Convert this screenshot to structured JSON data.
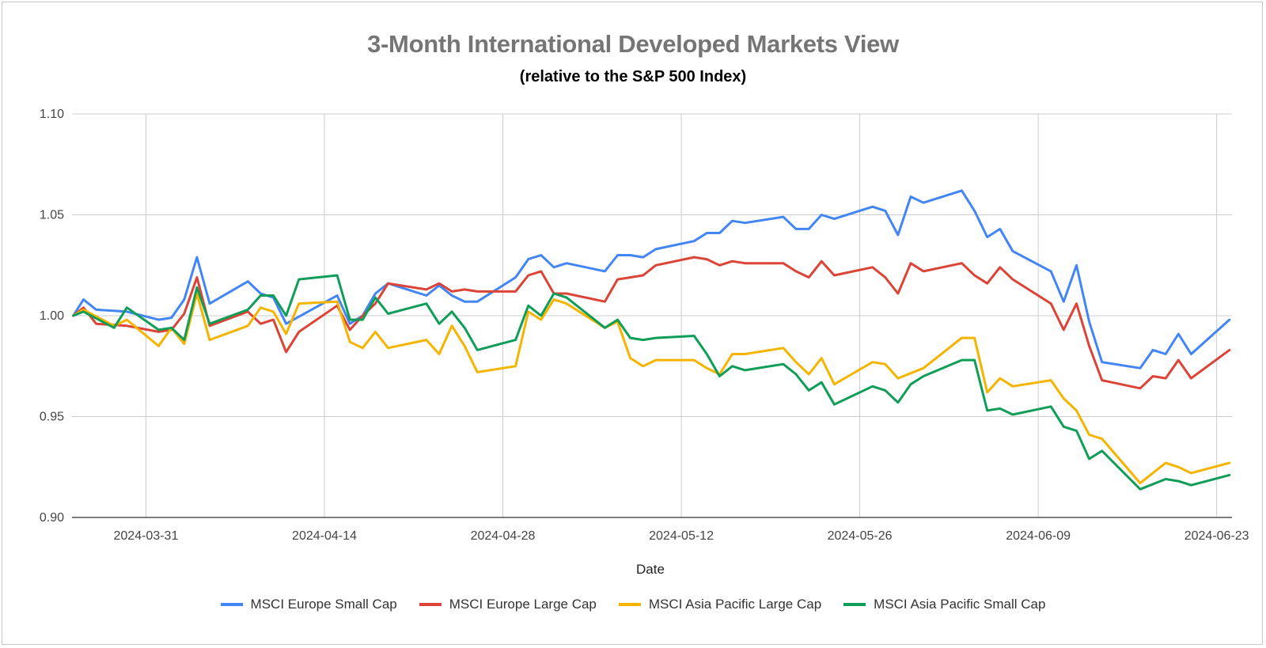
{
  "chart_data": {
    "type": "line",
    "title": "3-Month International Developed Markets View",
    "subtitle": "(relative to the S&P 500 Index)",
    "xlabel": "Date",
    "ylabel": "",
    "ylim": [
      0.9,
      1.1
    ],
    "yticks": [
      "0.90",
      "0.95",
      "1.00",
      "1.05",
      "1.10"
    ],
    "ytick_values": [
      0.9,
      0.95,
      1.0,
      1.05,
      1.1
    ],
    "xlim": [
      -5.8,
      85.2
    ],
    "xticks": [
      "2024-03-31",
      "2024-04-14",
      "2024-04-28",
      "2024-05-12",
      "2024-05-26",
      "2024-06-09",
      "2024-06-23"
    ],
    "xtick_values": [
      0,
      14,
      28,
      42,
      56,
      70,
      84
    ],
    "x_unit": "days since 2024-03-31",
    "grid": true,
    "legend_position": "bottom",
    "series": [
      {
        "name": "MSCI Europe Small Cap",
        "color": "#4285f4",
        "points": [
          [
            -5.7,
            1.0
          ],
          [
            -4.9,
            1.008
          ],
          [
            -3.9,
            1.003
          ],
          [
            -1.5,
            1.002
          ],
          [
            1,
            0.998
          ],
          [
            2,
            0.999
          ],
          [
            3,
            1.008
          ],
          [
            4,
            1.029
          ],
          [
            5,
            1.006
          ],
          [
            8,
            1.017
          ],
          [
            9,
            1.011
          ],
          [
            10,
            1.009
          ],
          [
            11,
            0.996
          ],
          [
            15,
            1.01
          ],
          [
            16,
            0.996
          ],
          [
            17,
            1.0
          ],
          [
            18,
            1.011
          ],
          [
            19,
            1.016
          ],
          [
            22,
            1.01
          ],
          [
            23,
            1.015
          ],
          [
            24,
            1.01
          ],
          [
            25,
            1.007
          ],
          [
            26,
            1.007
          ],
          [
            29,
            1.019
          ],
          [
            30,
            1.028
          ],
          [
            31,
            1.03
          ],
          [
            32,
            1.024
          ],
          [
            33,
            1.026
          ],
          [
            36,
            1.022
          ],
          [
            37,
            1.03
          ],
          [
            38,
            1.03
          ],
          [
            39,
            1.029
          ],
          [
            40,
            1.033
          ],
          [
            43,
            1.037
          ],
          [
            44,
            1.041
          ],
          [
            45,
            1.041
          ],
          [
            46,
            1.047
          ],
          [
            47,
            1.046
          ],
          [
            50,
            1.049
          ],
          [
            51,
            1.043
          ],
          [
            52,
            1.043
          ],
          [
            53,
            1.05
          ],
          [
            54,
            1.048
          ],
          [
            57,
            1.054
          ],
          [
            58,
            1.052
          ],
          [
            59,
            1.04
          ],
          [
            60,
            1.059
          ],
          [
            61,
            1.056
          ],
          [
            64,
            1.062
          ],
          [
            65,
            1.052
          ],
          [
            66,
            1.039
          ],
          [
            67,
            1.043
          ],
          [
            68,
            1.032
          ],
          [
            71,
            1.022
          ],
          [
            72,
            1.007
          ],
          [
            73,
            1.025
          ],
          [
            74,
            0.997
          ],
          [
            75,
            0.977
          ],
          [
            78,
            0.974
          ],
          [
            79,
            0.983
          ],
          [
            80,
            0.981
          ],
          [
            81,
            0.991
          ],
          [
            82,
            0.981
          ],
          [
            85,
            0.998
          ]
        ]
      },
      {
        "name": "MSCI Europe Large Cap",
        "color": "#db4437",
        "points": [
          [
            -5.7,
            1.0
          ],
          [
            -4.9,
            1.004
          ],
          [
            -3.9,
            0.996
          ],
          [
            -1.5,
            0.995
          ],
          [
            1,
            0.992
          ],
          [
            2,
            0.993
          ],
          [
            3,
            1.001
          ],
          [
            4,
            1.019
          ],
          [
            5,
            0.995
          ],
          [
            8,
            1.002
          ],
          [
            9,
            0.996
          ],
          [
            10,
            0.998
          ],
          [
            11,
            0.982
          ],
          [
            12,
            0.992
          ],
          [
            15,
            1.005
          ],
          [
            16,
            0.993
          ],
          [
            17,
            1.0
          ],
          [
            18,
            1.006
          ],
          [
            19,
            1.016
          ],
          [
            22,
            1.013
          ],
          [
            23,
            1.016
          ],
          [
            24,
            1.012
          ],
          [
            25,
            1.013
          ],
          [
            26,
            1.012
          ],
          [
            29,
            1.012
          ],
          [
            30,
            1.02
          ],
          [
            31,
            1.022
          ],
          [
            32,
            1.011
          ],
          [
            33,
            1.011
          ],
          [
            36,
            1.007
          ],
          [
            37,
            1.018
          ],
          [
            38,
            1.019
          ],
          [
            39,
            1.02
          ],
          [
            40,
            1.025
          ],
          [
            43,
            1.029
          ],
          [
            44,
            1.028
          ],
          [
            45,
            1.025
          ],
          [
            46,
            1.027
          ],
          [
            47,
            1.026
          ],
          [
            50,
            1.026
          ],
          [
            51,
            1.022
          ],
          [
            52,
            1.019
          ],
          [
            53,
            1.027
          ],
          [
            54,
            1.02
          ],
          [
            57,
            1.024
          ],
          [
            58,
            1.019
          ],
          [
            59,
            1.011
          ],
          [
            60,
            1.026
          ],
          [
            61,
            1.022
          ],
          [
            64,
            1.026
          ],
          [
            65,
            1.02
          ],
          [
            66,
            1.016
          ],
          [
            67,
            1.024
          ],
          [
            68,
            1.018
          ],
          [
            71,
            1.006
          ],
          [
            72,
            0.993
          ],
          [
            73,
            1.006
          ],
          [
            74,
            0.985
          ],
          [
            75,
            0.968
          ],
          [
            78,
            0.964
          ],
          [
            79,
            0.97
          ],
          [
            80,
            0.969
          ],
          [
            81,
            0.978
          ],
          [
            82,
            0.969
          ],
          [
            85,
            0.983
          ]
        ]
      },
      {
        "name": "MSCI Asia Pacific Large Cap",
        "color": "#f4b400",
        "points": [
          [
            -5.7,
            1.0
          ],
          [
            -4.9,
            1.003
          ],
          [
            -2.5,
            0.995
          ],
          [
            -1.5,
            0.998
          ],
          [
            1,
            0.985
          ],
          [
            2,
            0.994
          ],
          [
            3,
            0.986
          ],
          [
            4,
            1.011
          ],
          [
            5,
            0.988
          ],
          [
            8,
            0.995
          ],
          [
            9,
            1.004
          ],
          [
            10,
            1.002
          ],
          [
            11,
            0.991
          ],
          [
            12,
            1.006
          ],
          [
            15,
            1.007
          ],
          [
            16,
            0.987
          ],
          [
            17,
            0.984
          ],
          [
            18,
            0.992
          ],
          [
            19,
            0.984
          ],
          [
            22,
            0.988
          ],
          [
            23,
            0.981
          ],
          [
            24,
            0.995
          ],
          [
            25,
            0.985
          ],
          [
            26,
            0.972
          ],
          [
            29,
            0.975
          ],
          [
            30,
            1.002
          ],
          [
            31,
            0.998
          ],
          [
            32,
            1.008
          ],
          [
            33,
            1.006
          ],
          [
            36,
            0.994
          ],
          [
            37,
            0.997
          ],
          [
            38,
            0.979
          ],
          [
            39,
            0.975
          ],
          [
            40,
            0.978
          ],
          [
            43,
            0.978
          ],
          [
            44,
            0.974
          ],
          [
            45,
            0.971
          ],
          [
            46,
            0.981
          ],
          [
            47,
            0.981
          ],
          [
            50,
            0.984
          ],
          [
            51,
            0.977
          ],
          [
            52,
            0.971
          ],
          [
            53,
            0.979
          ],
          [
            54,
            0.966
          ],
          [
            57,
            0.977
          ],
          [
            58,
            0.976
          ],
          [
            59,
            0.969
          ],
          [
            61,
            0.974
          ],
          [
            64,
            0.989
          ],
          [
            65,
            0.989
          ],
          [
            66,
            0.962
          ],
          [
            67,
            0.969
          ],
          [
            68,
            0.965
          ],
          [
            71,
            0.968
          ],
          [
            72,
            0.959
          ],
          [
            73,
            0.953
          ],
          [
            74,
            0.941
          ],
          [
            75,
            0.939
          ],
          [
            78,
            0.917
          ],
          [
            80,
            0.927
          ],
          [
            81,
            0.925
          ],
          [
            82,
            0.922
          ],
          [
            85,
            0.927
          ]
        ]
      },
      {
        "name": "MSCI Asia Pacific Small Cap",
        "color": "#0f9d58",
        "points": [
          [
            -5.7,
            1.0
          ],
          [
            -4.9,
            1.002
          ],
          [
            -2.5,
            0.994
          ],
          [
            -1.5,
            1.004
          ],
          [
            1,
            0.993
          ],
          [
            2,
            0.994
          ],
          [
            3,
            0.988
          ],
          [
            4,
            1.014
          ],
          [
            5,
            0.996
          ],
          [
            8,
            1.003
          ],
          [
            9,
            1.01
          ],
          [
            10,
            1.01
          ],
          [
            11,
            1.0
          ],
          [
            12,
            1.018
          ],
          [
            15,
            1.02
          ],
          [
            16,
            0.998
          ],
          [
            17,
            0.998
          ],
          [
            18,
            1.009
          ],
          [
            19,
            1.001
          ],
          [
            22,
            1.006
          ],
          [
            23,
            0.996
          ],
          [
            24,
            1.002
          ],
          [
            25,
            0.994
          ],
          [
            26,
            0.983
          ],
          [
            29,
            0.988
          ],
          [
            30,
            1.005
          ],
          [
            31,
            1.0
          ],
          [
            32,
            1.011
          ],
          [
            33,
            1.009
          ],
          [
            36,
            0.994
          ],
          [
            37,
            0.998
          ],
          [
            38,
            0.989
          ],
          [
            39,
            0.988
          ],
          [
            40,
            0.989
          ],
          [
            43,
            0.99
          ],
          [
            44,
            0.981
          ],
          [
            45,
            0.97
          ],
          [
            46,
            0.975
          ],
          [
            47,
            0.973
          ],
          [
            50,
            0.976
          ],
          [
            51,
            0.971
          ],
          [
            52,
            0.963
          ],
          [
            53,
            0.967
          ],
          [
            54,
            0.956
          ],
          [
            57,
            0.965
          ],
          [
            58,
            0.963
          ],
          [
            59,
            0.957
          ],
          [
            60,
            0.966
          ],
          [
            61,
            0.97
          ],
          [
            64,
            0.978
          ],
          [
            65,
            0.978
          ],
          [
            66,
            0.953
          ],
          [
            67,
            0.954
          ],
          [
            68,
            0.951
          ],
          [
            71,
            0.955
          ],
          [
            72,
            0.945
          ],
          [
            73,
            0.943
          ],
          [
            74,
            0.929
          ],
          [
            75,
            0.933
          ],
          [
            78,
            0.914
          ],
          [
            80,
            0.919
          ],
          [
            81,
            0.918
          ],
          [
            82,
            0.916
          ],
          [
            85,
            0.921
          ]
        ]
      }
    ]
  }
}
